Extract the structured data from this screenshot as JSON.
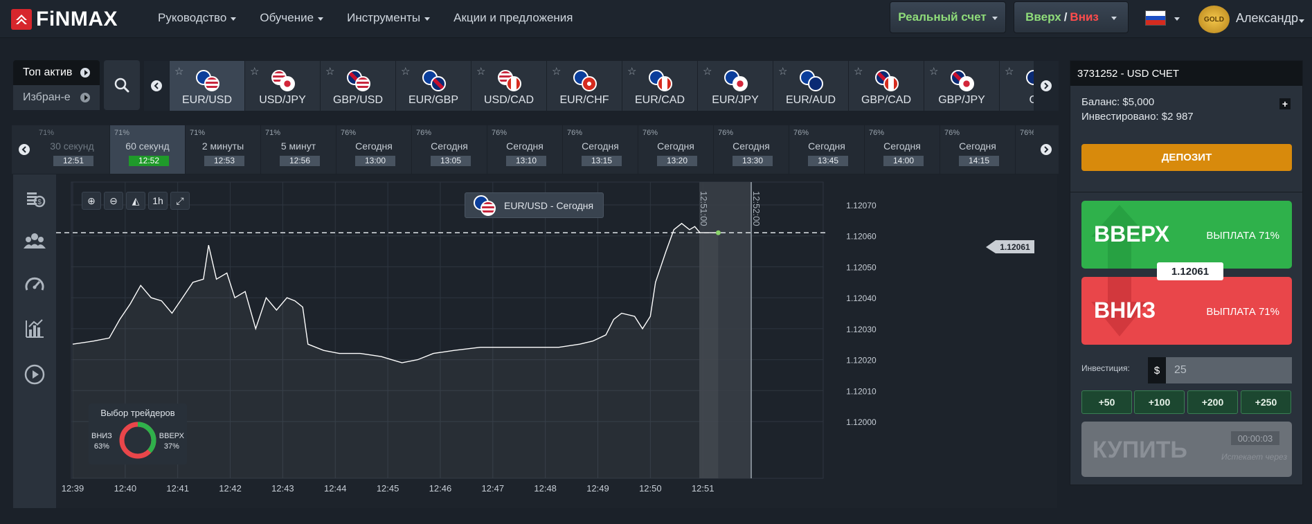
{
  "brand": {
    "name": "FiNMAX"
  },
  "nav": {
    "items": [
      "Руководство",
      "Обучение",
      "Инструменты",
      "Акции и предложения"
    ],
    "real_account": "Реальный счет",
    "up_label": "Вверх",
    "down_label": "Вниз",
    "separator": "/",
    "gold": "GOLD",
    "user": "Александр"
  },
  "asset_filter": {
    "top": "Топ актив",
    "favorites": "Избран-е"
  },
  "assets": [
    "EUR/USD",
    "USD/JPY",
    "GBP/USD",
    "EUR/GBP",
    "USD/CAD",
    "EUR/CHF",
    "EUR/CAD",
    "EUR/JPY",
    "EUR/AUD",
    "GBP/CAD",
    "GBP/JPY",
    "GB"
  ],
  "expiries": [
    {
      "pct": "71%",
      "label": "30 секунд",
      "time": "12:51"
    },
    {
      "pct": "71%",
      "label": "60 секунд",
      "time": "12:52"
    },
    {
      "pct": "71%",
      "label": "2 минуты",
      "time": "12:53"
    },
    {
      "pct": "71%",
      "label": "5 минут",
      "time": "12:56"
    },
    {
      "pct": "76%",
      "label": "Сегодня",
      "time": "13:00"
    },
    {
      "pct": "76%",
      "label": "Сегодня",
      "time": "13:05"
    },
    {
      "pct": "76%",
      "label": "Сегодня",
      "time": "13:10"
    },
    {
      "pct": "76%",
      "label": "Сегодня",
      "time": "13:15"
    },
    {
      "pct": "76%",
      "label": "Сегодня",
      "time": "13:20"
    },
    {
      "pct": "76%",
      "label": "Сегодня",
      "time": "13:30"
    },
    {
      "pct": "76%",
      "label": "Сегодня",
      "time": "13:45"
    },
    {
      "pct": "76%",
      "label": "Сегодня",
      "time": "14:00"
    },
    {
      "pct": "76%",
      "label": "Сегодня",
      "time": "14:15"
    },
    {
      "pct": "76%",
      "label": "",
      "time": ""
    }
  ],
  "chart": {
    "zoom_buttons": [
      "⊕",
      "⊖",
      "◭",
      "1h",
      "⤢"
    ],
    "asset_tag": "EUR/USD - Сегодня",
    "expiry_markers": [
      "12:51:00",
      "12:52:00"
    ],
    "current_price": "1.12061"
  },
  "chart_data": {
    "type": "line",
    "x_ticks": [
      "12:39",
      "12:40",
      "12:41",
      "12:42",
      "12:43",
      "12:44",
      "12:45",
      "12:46",
      "12:47",
      "12:48",
      "12:49",
      "12:50",
      "12:51"
    ],
    "y_ticks": [
      "1.12070",
      "1.12060",
      "1.12050",
      "1.12040",
      "1.12030",
      "1.12020",
      "1.12010",
      "1.12000"
    ],
    "ylim": [
      1.12,
      1.1207
    ],
    "xlim_minutes": [
      0,
      18.5
    ],
    "price_line": 1.12061,
    "series": [
      {
        "values": [
          [
            0,
            1.12025
          ],
          [
            0.4,
            1.12026
          ],
          [
            0.7,
            1.12027
          ],
          [
            0.9,
            1.12033
          ],
          [
            1.1,
            1.12038
          ],
          [
            1.3,
            1.12044
          ],
          [
            1.5,
            1.1204
          ],
          [
            1.7,
            1.12039
          ],
          [
            1.9,
            1.12035
          ],
          [
            2.1,
            1.1204
          ],
          [
            2.3,
            1.12045
          ],
          [
            2.5,
            1.12046
          ],
          [
            2.6,
            1.12057
          ],
          [
            2.75,
            1.12046
          ],
          [
            2.95,
            1.12048
          ],
          [
            3.1,
            1.1204
          ],
          [
            3.3,
            1.12042
          ],
          [
            3.5,
            1.1203
          ],
          [
            3.7,
            1.1204
          ],
          [
            3.9,
            1.12036
          ],
          [
            4.1,
            1.1204
          ],
          [
            4.25,
            1.12039
          ],
          [
            4.4,
            1.12037
          ],
          [
            4.5,
            1.12025
          ],
          [
            4.8,
            1.12023
          ],
          [
            5.1,
            1.12022
          ],
          [
            5.5,
            1.12022
          ],
          [
            5.9,
            1.12021
          ],
          [
            6.1,
            1.1202
          ],
          [
            6.3,
            1.12019
          ],
          [
            6.6,
            1.1202
          ],
          [
            6.9,
            1.12022
          ],
          [
            7.3,
            1.12023
          ],
          [
            7.8,
            1.12024
          ],
          [
            8.3,
            1.12024
          ],
          [
            8.8,
            1.12024
          ],
          [
            9.3,
            1.12024
          ],
          [
            9.7,
            1.12025
          ],
          [
            9.95,
            1.12026
          ],
          [
            10.2,
            1.12028
          ],
          [
            10.35,
            1.12033
          ],
          [
            10.5,
            1.12035
          ],
          [
            10.75,
            1.12034
          ],
          [
            10.9,
            1.1203
          ],
          [
            11.05,
            1.12034
          ],
          [
            11.15,
            1.12045
          ],
          [
            11.35,
            1.12055
          ],
          [
            11.5,
            1.12062
          ],
          [
            11.65,
            1.12064
          ],
          [
            11.8,
            1.12062
          ],
          [
            11.9,
            1.12063
          ],
          [
            12.0,
            1.12061
          ],
          [
            12.2,
            1.12061
          ],
          [
            12.35,
            1.12061
          ]
        ]
      }
    ],
    "traders_choice": {
      "title": "Выбор трейдеров",
      "down_label": "ВНИЗ",
      "down_pct": 63,
      "up_label": "ВВЕРХ",
      "up_pct": 37
    }
  },
  "traders": {
    "title": "Выбор трейдеров",
    "down": "ВНИЗ",
    "down_pct": "63%",
    "up": "ВВЕРХ",
    "up_pct": "37%"
  },
  "account": {
    "header": "3731252 - USD СЧЕТ",
    "balance": "Баланс: $5,000",
    "invested": "Инвестировано: $2 987",
    "deposit": "ДЕПОЗИТ"
  },
  "trade": {
    "up": "ВВЕРХ",
    "down": "ВНИЗ",
    "payout": "ВЫПЛАТА 71%",
    "price": "1.12061",
    "investment_label": "Инвестиция:",
    "currency": "$",
    "amount": "25",
    "quick": [
      "+50",
      "+100",
      "+200",
      "+250"
    ],
    "buy": "КУПИТЬ",
    "timer": "00:00:03",
    "expires": "Истекает через"
  },
  "colors": {
    "green": "#2fb14b",
    "red": "#e9464a",
    "orange": "#d88a0c",
    "gold": "#f3c64a"
  },
  "icons": [
    "search-icon",
    "star-icon",
    "arrow-left-icon",
    "arrow-right-icon",
    "coins-icon",
    "users-icon",
    "speedometer-icon",
    "bar-chart-icon",
    "play-circle-icon"
  ]
}
